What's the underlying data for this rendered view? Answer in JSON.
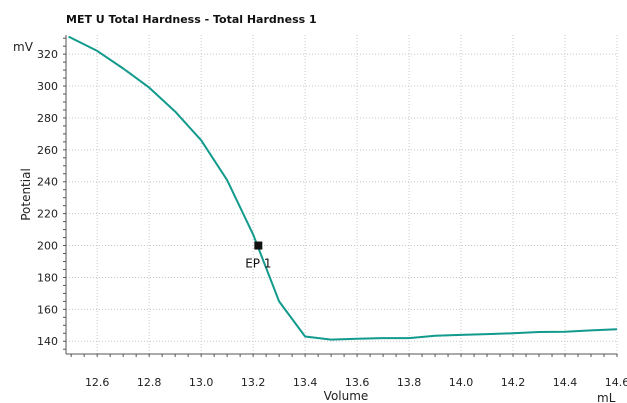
{
  "colors": {
    "series": "#129a8c",
    "ylabel": "#129a8c",
    "grid": "#c8c8c8",
    "axis": "#555555",
    "marker": "#111111"
  },
  "chart_data": {
    "type": "line",
    "title": "MET U Total Hardness - Total Hardness  1",
    "xlabel": "Volume",
    "ylabel": "Potential",
    "x_unit": "mL",
    "y_unit": "mV",
    "xlim": [
      12.48,
      14.6
    ],
    "ylim": [
      132,
      332
    ],
    "x_ticks": [
      12.6,
      12.8,
      13.0,
      13.2,
      13.4,
      13.6,
      13.8,
      14.0,
      14.2,
      14.4,
      14.6
    ],
    "x_tick_labels": [
      "12.6",
      "12.8",
      "13.0",
      "13.2",
      "13.4",
      "13.6",
      "13.8",
      "14.0",
      "14.2",
      "14.4",
      "14.6"
    ],
    "y_ticks": [
      140,
      160,
      180,
      200,
      220,
      240,
      260,
      280,
      300,
      320
    ],
    "y_tick_labels": [
      "140",
      "160",
      "180",
      "200",
      "220",
      "240",
      "260",
      "280",
      "300",
      "320"
    ],
    "grid": true,
    "legend": "none",
    "series": [
      {
        "x": [
          12.49,
          12.6,
          12.7,
          12.8,
          12.9,
          13.0,
          13.1,
          13.2,
          13.3,
          13.4,
          13.5,
          13.6,
          13.7,
          13.8,
          13.9,
          14.0,
          14.1,
          14.2,
          14.3,
          14.4,
          14.5,
          14.6
        ],
        "y": [
          331,
          322,
          311,
          299,
          284,
          266,
          241,
          207,
          165,
          143,
          141,
          141.5,
          142,
          142,
          143.5,
          144,
          144.5,
          145,
          145.8,
          146,
          146.8,
          147.5
        ]
      }
    ],
    "endpoint": {
      "label": "EP 1",
      "x": 13.22,
      "y": 200
    }
  }
}
